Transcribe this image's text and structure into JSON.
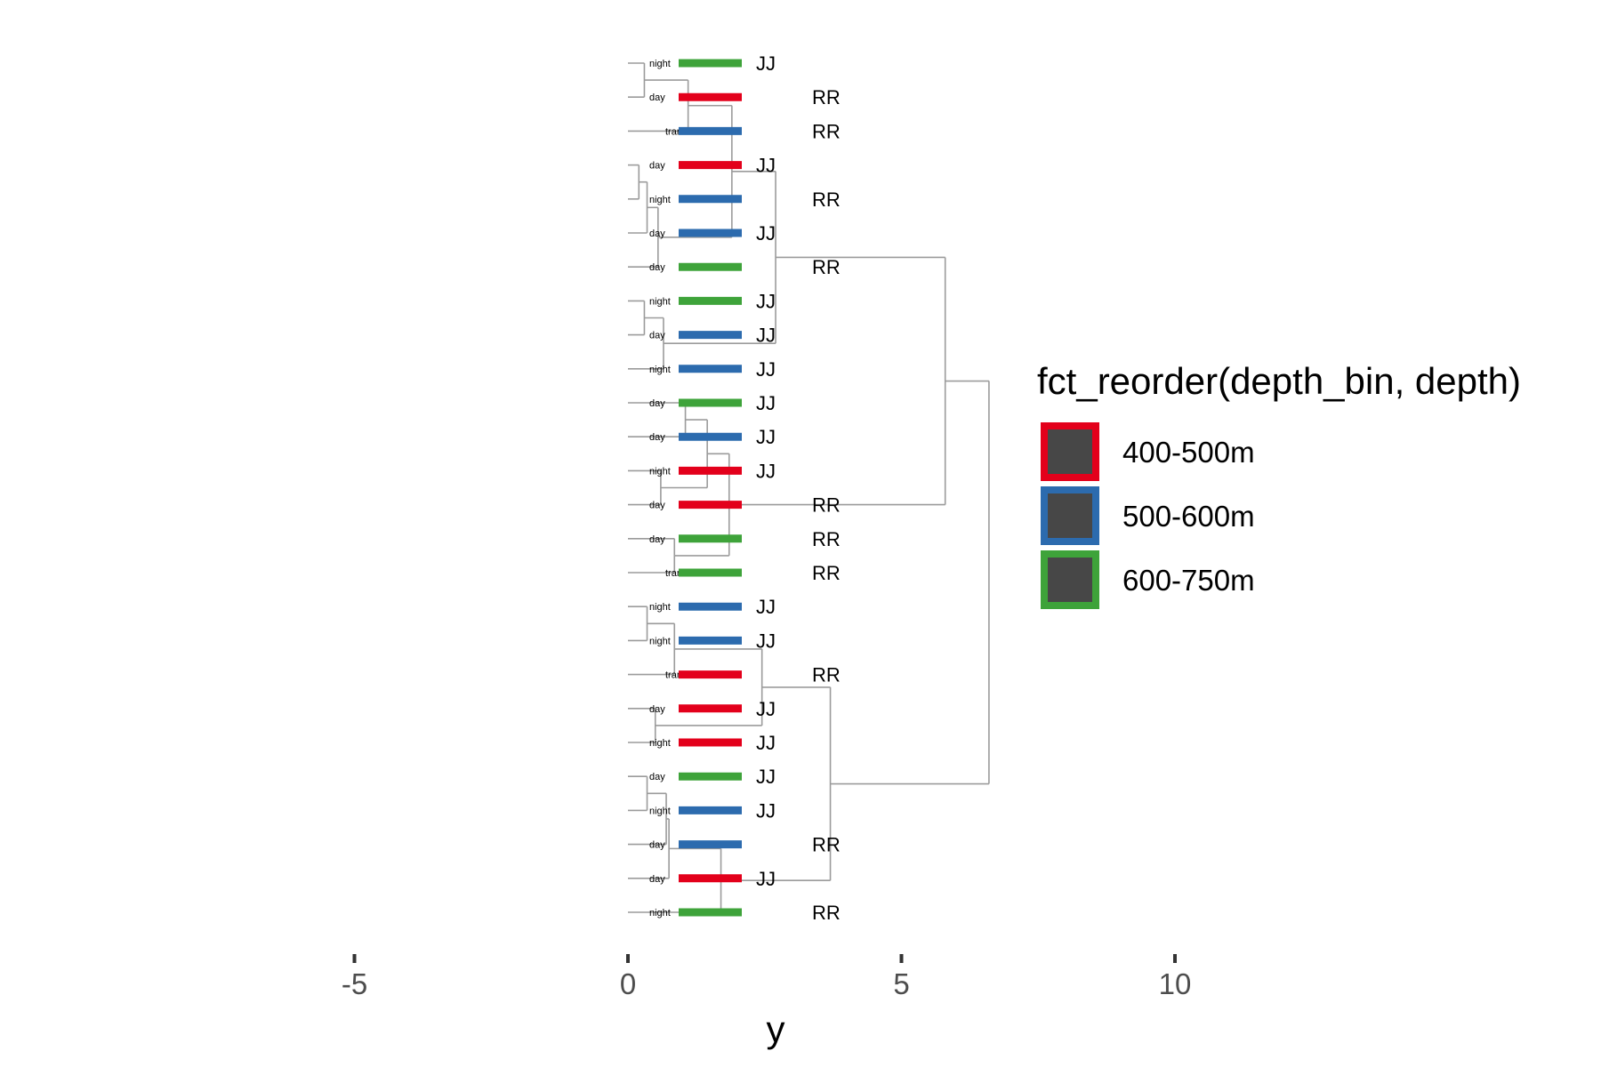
{
  "chart_data": {
    "type": "dendrogram",
    "xlabel": "y",
    "x_axis": {
      "reversed": true,
      "xlim": [
        11,
        -5.3
      ],
      "ticks": [
        10,
        5,
        0,
        -5
      ],
      "tick_labels": [
        "10",
        "5",
        "0",
        "-5"
      ]
    },
    "grid": false,
    "legend": {
      "position": "right",
      "title": "fct_reorder(depth_bin, depth)",
      "entries": [
        {
          "label": "400-500m",
          "color": "#E3001B"
        },
        {
          "label": "500-600m",
          "color": "#2C6BAE"
        },
        {
          "label": "600-750m",
          "color": "#3EA33A"
        }
      ],
      "key_fill": "#474747"
    },
    "branch_color": "#9b9b9b",
    "leaves": [
      {
        "id": 1,
        "label": "night",
        "depth_bin": "600-750m",
        "site": "JJ"
      },
      {
        "id": 2,
        "label": "day",
        "depth_bin": "400-500m",
        "site": "RR"
      },
      {
        "id": 3,
        "label": "transition",
        "depth_bin": "500-600m",
        "site": "RR"
      },
      {
        "id": 4,
        "label": "day",
        "depth_bin": "400-500m",
        "site": "JJ"
      },
      {
        "id": 5,
        "label": "night",
        "depth_bin": "500-600m",
        "site": "RR"
      },
      {
        "id": 6,
        "label": "day",
        "depth_bin": "500-600m",
        "site": "JJ"
      },
      {
        "id": 7,
        "label": "day",
        "depth_bin": "600-750m",
        "site": "RR"
      },
      {
        "id": 8,
        "label": "night",
        "depth_bin": "600-750m",
        "site": "JJ"
      },
      {
        "id": 9,
        "label": "day",
        "depth_bin": "500-600m",
        "site": "JJ"
      },
      {
        "id": 10,
        "label": "night",
        "depth_bin": "500-600m",
        "site": "JJ"
      },
      {
        "id": 11,
        "label": "day",
        "depth_bin": "600-750m",
        "site": "JJ"
      },
      {
        "id": 12,
        "label": "day",
        "depth_bin": "500-600m",
        "site": "JJ"
      },
      {
        "id": 13,
        "label": "night",
        "depth_bin": "400-500m",
        "site": "JJ"
      },
      {
        "id": 14,
        "label": "day",
        "depth_bin": "400-500m",
        "site": "RR"
      },
      {
        "id": 15,
        "label": "day",
        "depth_bin": "600-750m",
        "site": "RR"
      },
      {
        "id": 16,
        "label": "transition",
        "depth_bin": "600-750m",
        "site": "RR"
      },
      {
        "id": 17,
        "label": "night",
        "depth_bin": "500-600m",
        "site": "JJ"
      },
      {
        "id": 18,
        "label": "night",
        "depth_bin": "500-600m",
        "site": "JJ"
      },
      {
        "id": 19,
        "label": "transition",
        "depth_bin": "400-500m",
        "site": "RR"
      },
      {
        "id": 20,
        "label": "day",
        "depth_bin": "400-500m",
        "site": "JJ"
      },
      {
        "id": 21,
        "label": "night",
        "depth_bin": "400-500m",
        "site": "JJ"
      },
      {
        "id": 22,
        "label": "day",
        "depth_bin": "600-750m",
        "site": "JJ"
      },
      {
        "id": 23,
        "label": "night",
        "depth_bin": "500-600m",
        "site": "JJ"
      },
      {
        "id": 24,
        "label": "day",
        "depth_bin": "500-600m",
        "site": "RR"
      },
      {
        "id": 25,
        "label": "day",
        "depth_bin": "400-500m",
        "site": "JJ"
      },
      {
        "id": 26,
        "label": "night",
        "depth_bin": "600-750m",
        "site": "RR"
      }
    ],
    "merges": [
      {
        "id": "m1",
        "children": [
          1,
          2
        ],
        "height": 0.3
      },
      {
        "id": "m2",
        "children": [
          "m1",
          3
        ],
        "height": 1.1
      },
      {
        "id": "m3",
        "children": [
          4,
          5
        ],
        "height": 0.2
      },
      {
        "id": "m4",
        "children": [
          "m3",
          6
        ],
        "height": 0.35
      },
      {
        "id": "m5",
        "children": [
          "m4",
          7
        ],
        "height": 0.55
      },
      {
        "id": "m6",
        "children": [
          "m2",
          "m5"
        ],
        "height": 1.9
      },
      {
        "id": "m7",
        "children": [
          8,
          9
        ],
        "height": 0.3
      },
      {
        "id": "m8",
        "children": [
          "m7",
          10
        ],
        "height": 0.65
      },
      {
        "id": "m9",
        "children": [
          "m6",
          "m8"
        ],
        "height": 2.7
      },
      {
        "id": "m10",
        "children": [
          11,
          12
        ],
        "height": 1.05
      },
      {
        "id": "m11",
        "children": [
          13,
          14
        ],
        "height": 0.6
      },
      {
        "id": "m12",
        "children": [
          "m10",
          "m11"
        ],
        "height": 1.45
      },
      {
        "id": "m13",
        "children": [
          15,
          16
        ],
        "height": 0.85
      },
      {
        "id": "m14",
        "children": [
          "m12",
          "m13"
        ],
        "height": 1.85
      },
      {
        "id": "m15",
        "children": [
          "m9",
          "m14"
        ],
        "height": 5.8
      },
      {
        "id": "m16",
        "children": [
          17,
          18
        ],
        "height": 0.35
      },
      {
        "id": "m17",
        "children": [
          "m16",
          19
        ],
        "height": 0.85
      },
      {
        "id": "m18",
        "children": [
          20,
          21
        ],
        "height": 0.5
      },
      {
        "id": "m19",
        "children": [
          "m17",
          "m18"
        ],
        "height": 2.45
      },
      {
        "id": "m20",
        "children": [
          22,
          23
        ],
        "height": 0.35
      },
      {
        "id": "m21",
        "children": [
          "m20",
          24
        ],
        "height": 0.7
      },
      {
        "id": "m22",
        "children": [
          "m21",
          25
        ],
        "height": 0.75
      },
      {
        "id": "m23",
        "children": [
          "m22",
          26
        ],
        "height": 1.7
      },
      {
        "id": "m24",
        "children": [
          "m19",
          "m23"
        ],
        "height": 3.7
      },
      {
        "id": "m25",
        "children": [
          "m15",
          "m24"
        ],
        "height": 6.6
      }
    ]
  }
}
